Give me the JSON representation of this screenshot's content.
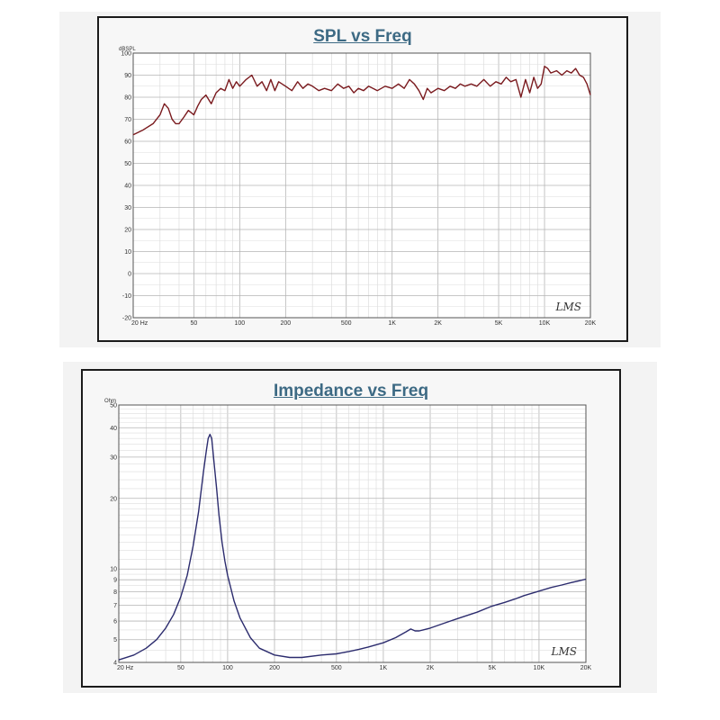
{
  "chart_data": [
    {
      "type": "line",
      "title": "SPL vs Freq",
      "ylabel": "dBSPL",
      "xlabel": "",
      "x_scale": "log",
      "xlim": [
        20,
        20000
      ],
      "ylim": [
        -20,
        100
      ],
      "grid": true,
      "x_tick_labels": [
        {
          "v": 20,
          "t": "20 Hz"
        },
        {
          "v": 50,
          "t": "50"
        },
        {
          "v": 100,
          "t": "100"
        },
        {
          "v": 200,
          "t": "200"
        },
        {
          "v": 500,
          "t": "500"
        },
        {
          "v": 1000,
          "t": "1K"
        },
        {
          "v": 2000,
          "t": "2K"
        },
        {
          "v": 5000,
          "t": "5K"
        },
        {
          "v": 10000,
          "t": "10K"
        },
        {
          "v": 20000,
          "t": "20K"
        }
      ],
      "y_tick_labels": [
        100,
        90,
        80,
        70,
        60,
        50,
        40,
        30,
        20,
        10,
        0,
        -10,
        -20
      ],
      "series": [
        {
          "color": "#7a1a1e",
          "x": [
            20,
            23,
            27,
            30,
            32,
            34,
            36,
            38,
            40,
            43,
            46,
            50,
            53,
            56,
            60,
            65,
            70,
            75,
            80,
            85,
            90,
            95,
            100,
            110,
            120,
            130,
            140,
            150,
            160,
            170,
            180,
            200,
            220,
            240,
            260,
            280,
            300,
            330,
            360,
            400,
            440,
            480,
            520,
            560,
            600,
            650,
            700,
            750,
            800,
            900,
            1000,
            1100,
            1200,
            1300,
            1400,
            1500,
            1600,
            1700,
            1800,
            2000,
            2200,
            2400,
            2600,
            2800,
            3000,
            3300,
            3600,
            4000,
            4400,
            4800,
            5200,
            5600,
            6000,
            6500,
            7000,
            7500,
            8000,
            8500,
            9000,
            9500,
            10000,
            10500,
            11000,
            12000,
            13000,
            14000,
            15000,
            16000,
            17000,
            18000,
            19000,
            20000
          ],
          "y": [
            63,
            65,
            68,
            72,
            77,
            75,
            70,
            68,
            68,
            71,
            74,
            72,
            76,
            79,
            81,
            77,
            82,
            84,
            83,
            88,
            84,
            87,
            85,
            88,
            90,
            85,
            87,
            83,
            88,
            83,
            87,
            85,
            83,
            87,
            84,
            86,
            85,
            83,
            84,
            83,
            86,
            84,
            85,
            82,
            84,
            83,
            85,
            84,
            83,
            85,
            84,
            86,
            84,
            88,
            86,
            83,
            79,
            84,
            82,
            84,
            83,
            85,
            84,
            86,
            85,
            86,
            85,
            88,
            85,
            87,
            86,
            89,
            87,
            88,
            80,
            88,
            82,
            89,
            84,
            86,
            94,
            93,
            91,
            92,
            90,
            92,
            91,
            93,
            90,
            89,
            86,
            81
          ]
        }
      ]
    },
    {
      "type": "line",
      "title": "Impedance vs Freq",
      "ylabel": "Ohm",
      "xlabel": "",
      "x_scale": "log",
      "y_scale": "log",
      "xlim": [
        20,
        20000
      ],
      "ylim": [
        4,
        50
      ],
      "grid": true,
      "x_tick_labels": [
        {
          "v": 20,
          "t": "20 Hz"
        },
        {
          "v": 50,
          "t": "50"
        },
        {
          "v": 100,
          "t": "100"
        },
        {
          "v": 200,
          "t": "200"
        },
        {
          "v": 500,
          "t": "500"
        },
        {
          "v": 1000,
          "t": "1K"
        },
        {
          "v": 2000,
          "t": "2K"
        },
        {
          "v": 5000,
          "t": "5K"
        },
        {
          "v": 10000,
          "t": "10K"
        },
        {
          "v": 20000,
          "t": "20K"
        }
      ],
      "y_tick_labels": [
        50,
        40,
        30,
        20,
        10,
        9,
        8,
        7,
        6,
        5,
        4
      ],
      "series": [
        {
          "color": "#2c2c6e",
          "x": [
            20,
            25,
            30,
            35,
            40,
            45,
            50,
            55,
            60,
            65,
            70,
            73,
            75,
            77,
            79,
            80,
            82,
            85,
            88,
            92,
            96,
            100,
            110,
            120,
            140,
            160,
            200,
            250,
            300,
            400,
            500,
            600,
            700,
            800,
            1000,
            1200,
            1400,
            1500,
            1600,
            1700,
            1800,
            2000,
            2500,
            3000,
            4000,
            5000,
            6000,
            7000,
            8000,
            10000,
            12000,
            14000,
            16000,
            18000,
            20000
          ],
          "y": [
            4.1,
            4.3,
            4.6,
            5.0,
            5.6,
            6.4,
            7.6,
            9.4,
            12.5,
            17.5,
            26,
            32,
            36,
            37.5,
            36,
            33,
            28,
            22,
            17,
            13,
            10.8,
            9.4,
            7.3,
            6.2,
            5.1,
            4.6,
            4.3,
            4.2,
            4.2,
            4.3,
            4.35,
            4.45,
            4.55,
            4.65,
            4.85,
            5.1,
            5.4,
            5.55,
            5.45,
            5.45,
            5.5,
            5.6,
            5.9,
            6.15,
            6.55,
            6.95,
            7.2,
            7.45,
            7.7,
            8.05,
            8.35,
            8.55,
            8.75,
            8.9,
            9.05
          ]
        }
      ]
    }
  ],
  "watermarks": [
    "LMS",
    "LMS"
  ]
}
